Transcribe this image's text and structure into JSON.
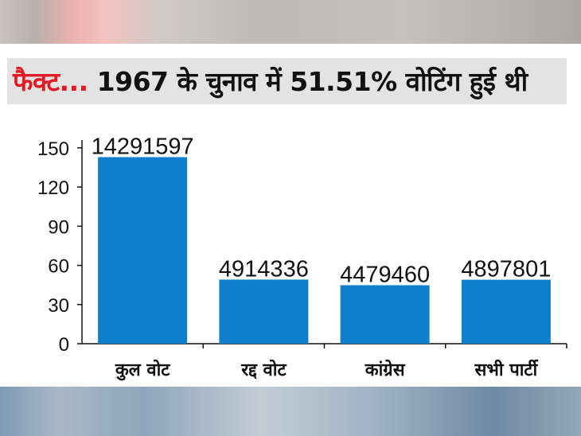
{
  "title": {
    "accent": "फैक्ट...",
    "rest": " 1967 के चुनाव में 51.51% वोटिंग हुई थी"
  },
  "colors": {
    "bar": "#0d7fcc",
    "accent": "#e01b24",
    "title_band": "#e3e3e3"
  },
  "chart_data": {
    "type": "bar",
    "title": "फैक्ट... 1967 के चुनाव में 51.51% वोटिंग हुई थी",
    "categories": [
      "कुल वोट",
      "रद्द वोट",
      "कांग्रेस",
      "सभी पार्टी"
    ],
    "values": [
      142.9,
      49.1,
      44.8,
      49.0
    ],
    "data_labels": [
      "14291597",
      "4914336",
      "4479460",
      "4897801"
    ],
    "yticks": [
      0,
      30,
      60,
      90,
      120,
      150
    ],
    "ylim": [
      0,
      156
    ],
    "xlabel": "",
    "ylabel": "",
    "grid": false,
    "legend": "none"
  }
}
